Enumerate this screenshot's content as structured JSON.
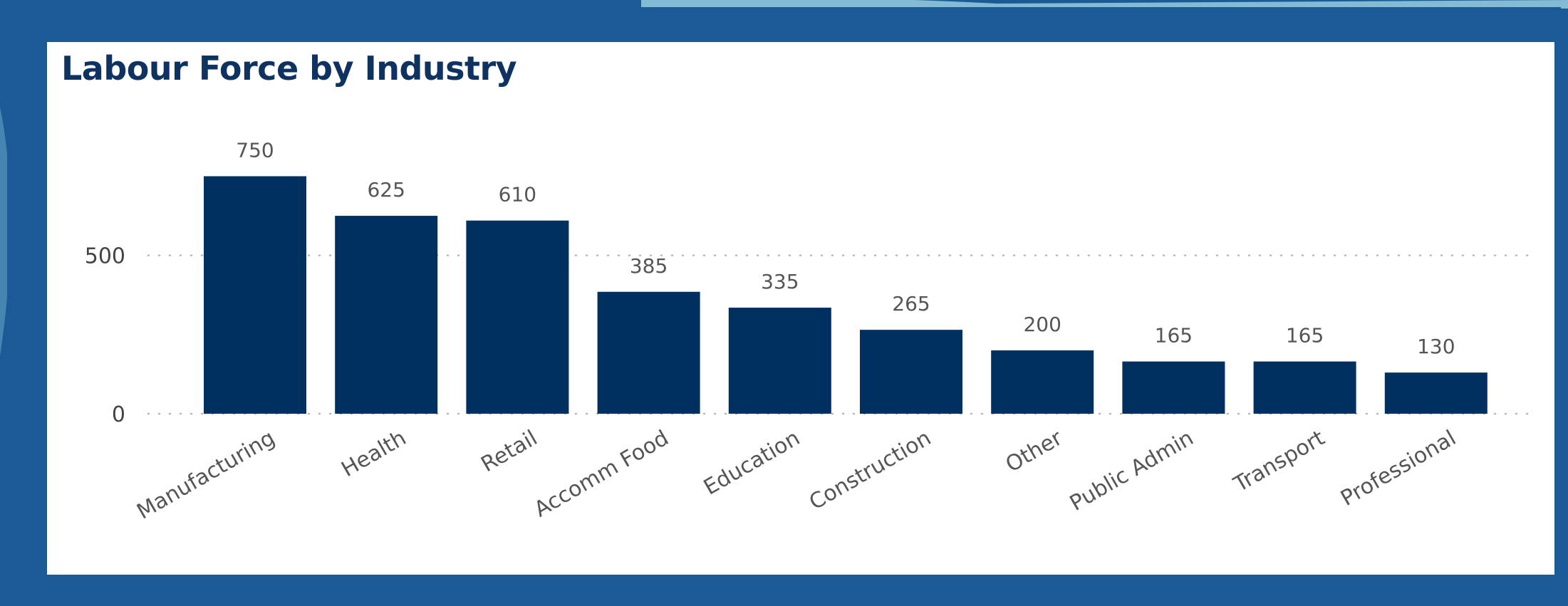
{
  "colors": {
    "frame": "#1b5a96",
    "card": "#ffffff",
    "title": "#0f3360",
    "bar": "#00305f"
  },
  "chart_data": {
    "type": "bar",
    "title": "Labour Force by Industry",
    "xlabel": "",
    "ylabel": "",
    "categories": [
      "Manufacturing",
      "Health",
      "Retail",
      "Accomm Food",
      "Education",
      "Construction",
      "Other",
      "Public Admin",
      "Transport",
      "Professional"
    ],
    "values": [
      750,
      625,
      610,
      385,
      335,
      265,
      200,
      165,
      165,
      130
    ],
    "data_labels": [
      "750",
      "625",
      "610",
      "385",
      "335",
      "265",
      "200",
      "165",
      "165",
      "130"
    ],
    "y_ticks": [
      0,
      500
    ],
    "y_tick_labels": [
      "0",
      "500"
    ],
    "ylim": [
      0,
      750
    ],
    "grid": "horizontal dotted",
    "legend": "none"
  }
}
